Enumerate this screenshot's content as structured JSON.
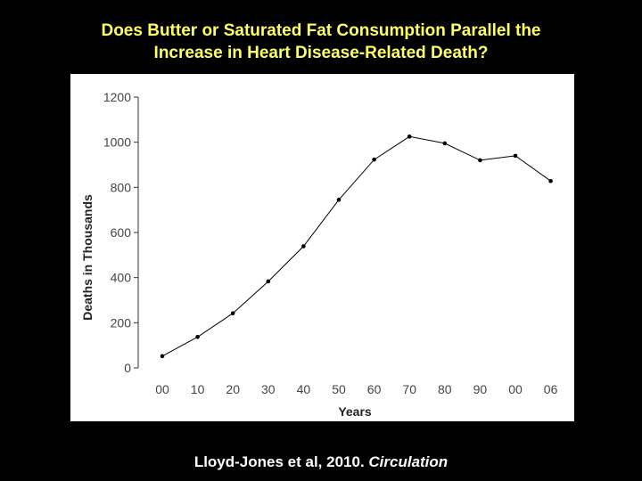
{
  "slide": {
    "title_line1": "Does Butter or Saturated Fat Consumption Parallel the",
    "title_line2": "Increase in Heart Disease-Related Death?",
    "caption_text": "Lloyd-Jones et al, 2010. ",
    "caption_journal": "Circulation"
  },
  "colors": {
    "background": "#000000",
    "title": "#ffff66",
    "caption": "#ffffff",
    "line": "#000000"
  },
  "chart_data": {
    "type": "line",
    "title": "",
    "xlabel": "Years",
    "ylabel": "Deaths in Thousands",
    "categories": [
      "00",
      "10",
      "20",
      "30",
      "40",
      "50",
      "60",
      "70",
      "80",
      "90",
      "00",
      "06"
    ],
    "series": [
      {
        "values": [
          52,
          137,
          242,
          383,
          539,
          745,
          923,
          1025,
          995,
          920,
          940,
          828
        ]
      }
    ],
    "ylim": [
      0,
      1200
    ],
    "yticks": [
      0,
      200,
      400,
      600,
      800,
      1000,
      1200
    ],
    "grid": false
  }
}
